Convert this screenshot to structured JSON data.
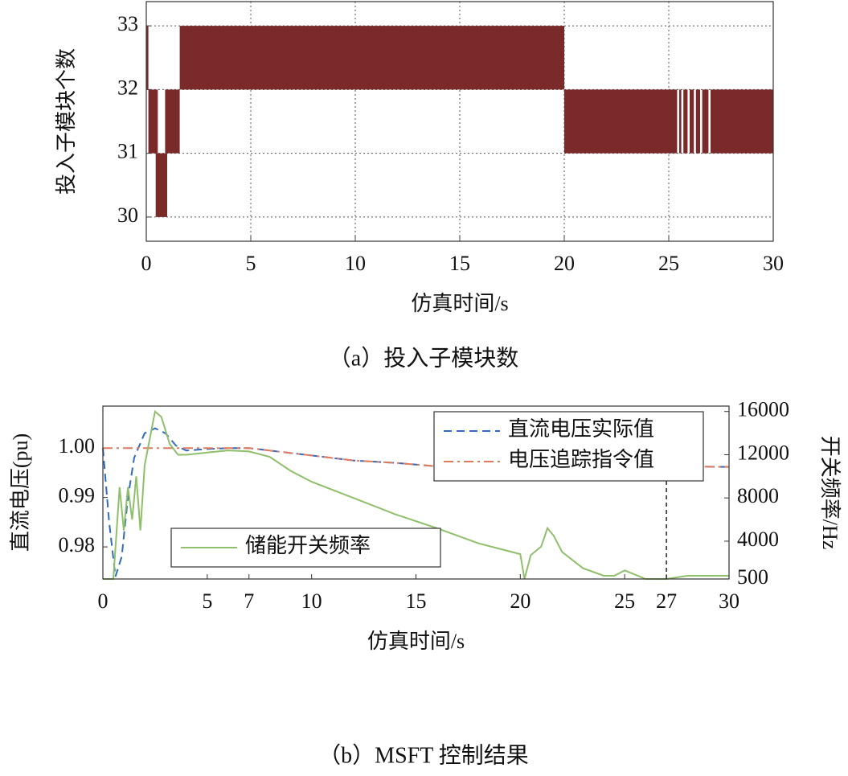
{
  "chart_data": [
    {
      "type": "range",
      "y_label": "投入子模块个数",
      "x_label": "仿真时间/s",
      "caption": "（a）投入子模块数",
      "color": "#7b2a2a",
      "x_start": [
        0,
        0.1,
        0.45,
        0.9,
        1.6,
        20,
        25.5,
        25.7,
        26.0,
        26.3,
        26.6,
        27
      ],
      "x_end": [
        0.1,
        0.55,
        1.0,
        1.6,
        20,
        25.4,
        25.6,
        25.9,
        26.2,
        26.5,
        26.9,
        30
      ],
      "low": [
        32,
        31,
        30,
        31,
        32,
        31,
        31,
        31,
        31,
        31,
        31,
        31
      ],
      "high": [
        33,
        32,
        31,
        32,
        33,
        32,
        32,
        32,
        32,
        32,
        32,
        32
      ],
      "xlim": [
        0,
        30
      ],
      "xticks": [
        0,
        5,
        10,
        15,
        20,
        25,
        30
      ],
      "ylim": [
        29.62,
        33.38
      ],
      "yticks": [
        30,
        31,
        32,
        33
      ],
      "grid": true
    },
    {
      "type": "line",
      "y_label": "直流电压(pu)",
      "y2_label": "开关频率/Hz",
      "x_label": "仿真时间/s",
      "caption": "（b）MSFT 控制结果",
      "xlim": [
        0,
        30
      ],
      "xticks": [
        0,
        5,
        7,
        10,
        15,
        20,
        25,
        27,
        30
      ],
      "ylim": [
        0.9735,
        1.0085
      ],
      "yticks": [
        0.98,
        0.99,
        {
          "value": 1,
          "label": "1.00"
        }
      ],
      "y2lim": [
        500,
        16500
      ],
      "y2ticks": [
        500,
        4000,
        8000,
        12000,
        16000
      ],
      "legend": "upper right",
      "legend_y2": "center left",
      "marker_line": {
        "x": 27,
        "y": 0.9963
      },
      "series": [
        {
          "name": "直流电压实际值",
          "color": "#2f6bbf",
          "dash": "10,6",
          "x": [
            0,
            0.3,
            0.6,
            0.9,
            1.2,
            1.5,
            2,
            2.5,
            3,
            3.5,
            4,
            5,
            6,
            7,
            8,
            10,
            12,
            14,
            16,
            18,
            20,
            20.7,
            21.5,
            22.5,
            24,
            27,
            30
          ],
          "values": [
            1.0,
            0.985,
            0.974,
            0.978,
            0.99,
            0.998,
            1.003,
            1.004,
            1.003,
            1.0005,
            0.9995,
            0.9998,
            1.0,
            1.0,
            0.9995,
            0.9985,
            0.9975,
            0.997,
            0.9963,
            0.9958,
            0.9955,
            0.995,
            0.9957,
            0.996,
            0.9962,
            0.9963,
            0.9962
          ]
        },
        {
          "name": "电压追踪指令值",
          "color": "#e07a5f",
          "dash": "12,5,3,5",
          "x": [
            0,
            7,
            8,
            10,
            12,
            14,
            16,
            18,
            20,
            21,
            22,
            24,
            27,
            30
          ],
          "values": [
            1.0,
            1.0,
            0.9995,
            0.9985,
            0.9975,
            0.997,
            0.9963,
            0.9958,
            0.9955,
            0.9955,
            0.996,
            0.9962,
            0.9963,
            0.9962
          ]
        },
        {
          "name": "储能开关频率",
          "color": "#8fbf6a",
          "axis": "y2",
          "x": [
            0,
            0.5,
            0.8,
            1.0,
            1.2,
            1.4,
            1.6,
            1.8,
            2.0,
            2.2,
            2.5,
            2.8,
            3.2,
            3.6,
            4,
            5,
            6,
            7,
            8,
            9,
            10,
            12,
            14,
            16,
            18,
            20,
            20.2,
            20.5,
            21,
            21.3,
            21.6,
            22,
            23,
            24,
            24.5,
            25,
            25.5,
            26,
            27,
            28,
            30
          ],
          "values": [
            500,
            500,
            9000,
            5000,
            9000,
            6000,
            10000,
            5000,
            11000,
            13000,
            16000,
            15500,
            13000,
            12000,
            12000,
            12200,
            12400,
            12300,
            11800,
            10500,
            9500,
            8000,
            6500,
            5200,
            3800,
            2800,
            500,
            2700,
            3500,
            5200,
            4500,
            3000,
            1500,
            800,
            800,
            1300,
            900,
            500,
            500,
            800,
            800
          ]
        }
      ]
    }
  ]
}
